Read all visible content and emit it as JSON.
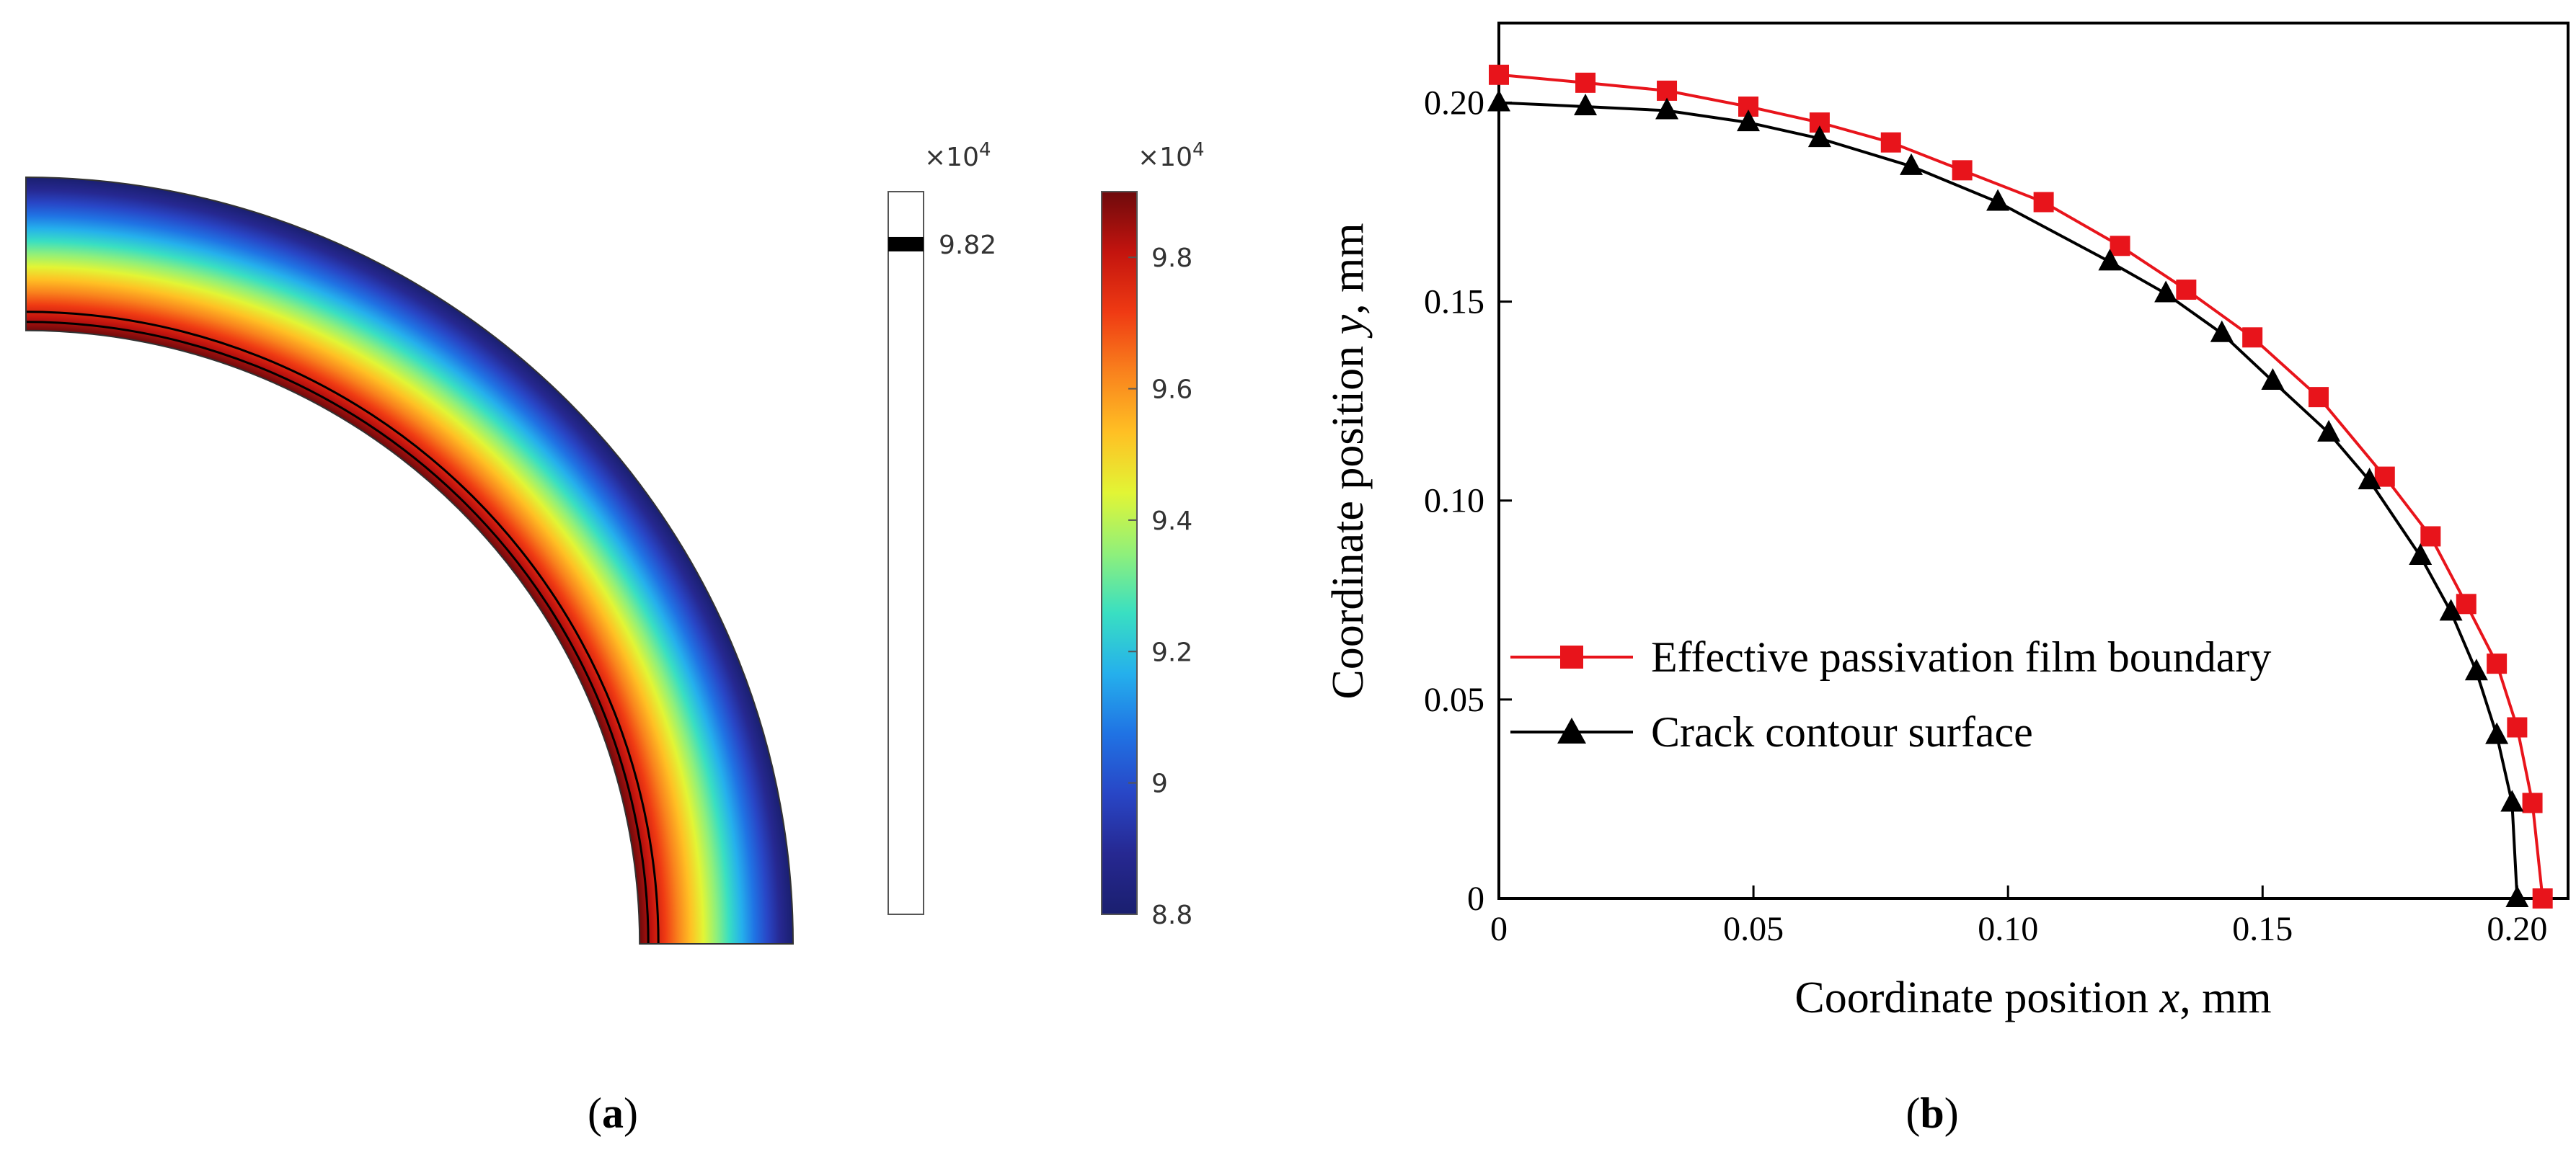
{
  "panel_a": {
    "label": "a",
    "contour_scale_multiplier": "×10",
    "contour_scale_exponent": "4",
    "contour_level_label": "9.82",
    "contour_level_value": 9.82,
    "colorbar_multiplier": "×10",
    "colorbar_exponent": "4",
    "colorbar_min": 8.8,
    "colorbar_max": 9.9,
    "colorbar_ticks": [
      "9.8",
      "9.6",
      "9.4",
      "9.2",
      "9",
      "8.8"
    ],
    "colorbar_tick_values": [
      9.8,
      9.6,
      9.4,
      9.2,
      9.0,
      8.8
    ],
    "colorbar_colors": [
      "#6e0a0c",
      "#c3140e",
      "#ef3a13",
      "#f9821d",
      "#ffc024",
      "#e2f535",
      "#90f07a",
      "#39dfc2",
      "#25b0ec",
      "#2073e4",
      "#2846c6",
      "#262891",
      "#1a1f6f"
    ],
    "ring_inner_radius_rel": 0.8,
    "ring_outer_radius_rel": 1.0
  },
  "panel_b": {
    "label": "b",
    "chart_data": {
      "type": "line",
      "title": "",
      "xlabel_prefix": "Coordinate position ",
      "xlabel_var": "x",
      "xlabel_suffix": ", mm",
      "ylabel_prefix": "Coordinate position ",
      "ylabel_var": "y",
      "ylabel_suffix": ", mm",
      "xlim": [
        0,
        0.21
      ],
      "ylim": [
        0,
        0.22
      ],
      "xticks": [
        0,
        0.05,
        0.1,
        0.15,
        0.2
      ],
      "xtick_labels": [
        "0",
        "0.05",
        "0.10",
        "0.15",
        "0.20"
      ],
      "yticks": [
        0,
        0.05,
        0.1,
        0.15,
        0.2
      ],
      "ytick_labels": [
        "0",
        "0.05",
        "0.10",
        "0.15",
        "0.20"
      ],
      "legend_position": "center-left",
      "series": [
        {
          "name": "Effective passivation film boundary",
          "color": "#e8141b",
          "marker": "square",
          "x": [
            0,
            0.017,
            0.033,
            0.049,
            0.063,
            0.077,
            0.091,
            0.107,
            0.122,
            0.135,
            0.148,
            0.161,
            0.174,
            0.183,
            0.19,
            0.196,
            0.2,
            0.203,
            0.205
          ],
          "y": [
            0.207,
            0.205,
            0.203,
            0.199,
            0.195,
            0.19,
            0.183,
            0.175,
            0.164,
            0.153,
            0.141,
            0.126,
            0.106,
            0.091,
            0.074,
            0.059,
            0.043,
            0.024,
            0.0
          ]
        },
        {
          "name": "Crack contour surface",
          "color": "#000000",
          "marker": "triangle",
          "x": [
            0,
            0.017,
            0.033,
            0.049,
            0.063,
            0.081,
            0.098,
            0.12,
            0.131,
            0.142,
            0.152,
            0.163,
            0.171,
            0.181,
            0.187,
            0.192,
            0.196,
            0.199,
            0.2
          ],
          "y": [
            0.2,
            0.199,
            0.198,
            0.195,
            0.191,
            0.184,
            0.175,
            0.16,
            0.152,
            0.142,
            0.13,
            0.117,
            0.105,
            0.086,
            0.072,
            0.057,
            0.041,
            0.024,
            0.0
          ]
        }
      ]
    }
  }
}
